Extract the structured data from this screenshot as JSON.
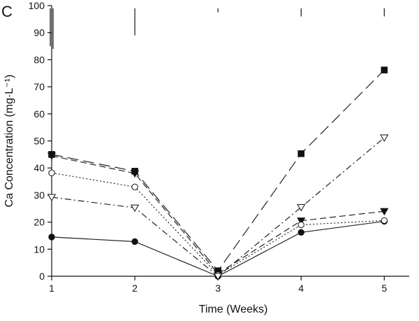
{
  "chart_data": {
    "type": "line",
    "panel_label": "C",
    "title": "",
    "xlabel": "Time (Weeks)",
    "ylabel": "Ca Concentration (mg·L⁻¹)",
    "x": [
      1,
      2,
      3,
      4,
      5
    ],
    "x_tick_labels": [
      "1",
      "2",
      "3",
      "4",
      "5"
    ],
    "y_tick_labels": [
      "0",
      "10",
      "20",
      "30",
      "40",
      "50",
      "60",
      "70",
      "80",
      "90",
      "100"
    ],
    "xlim": [
      1,
      5.3
    ],
    "ylim": [
      0,
      100
    ],
    "grid": false,
    "series": [
      {
        "name": "filled circle",
        "marker": "circle",
        "filled": true,
        "dash": "solid",
        "values": [
          14.5,
          12.8,
          0,
          16.2,
          20.3
        ]
      },
      {
        "name": "filled square",
        "marker": "square",
        "filled": true,
        "dash": "longdash",
        "values": [
          45,
          38.8,
          2,
          45.3,
          76.2
        ]
      },
      {
        "name": "filled triangle",
        "marker": "triangle-down",
        "filled": true,
        "dash": "dash",
        "values": [
          44.5,
          38,
          1,
          20.5,
          24
        ]
      },
      {
        "name": "open circle",
        "marker": "circle",
        "filled": false,
        "dash": "dotted",
        "values": [
          38.2,
          33,
          0.5,
          19,
          20.6
        ]
      },
      {
        "name": "open triangle",
        "marker": "triangle-down",
        "filled": false,
        "dash": "dashdot",
        "values": [
          29.2,
          25.3,
          0,
          25.5,
          51.2
        ]
      }
    ],
    "error_bars_top": [
      {
        "x": 1,
        "upper": 99,
        "lower": 85
      },
      {
        "x": 2,
        "upper": 99,
        "lower": 89
      },
      {
        "x": 3,
        "upper": 99,
        "lower": 97.5
      },
      {
        "x": 4,
        "upper": 99,
        "lower": 96
      },
      {
        "x": 5,
        "upper": 99,
        "lower": 96
      }
    ]
  }
}
